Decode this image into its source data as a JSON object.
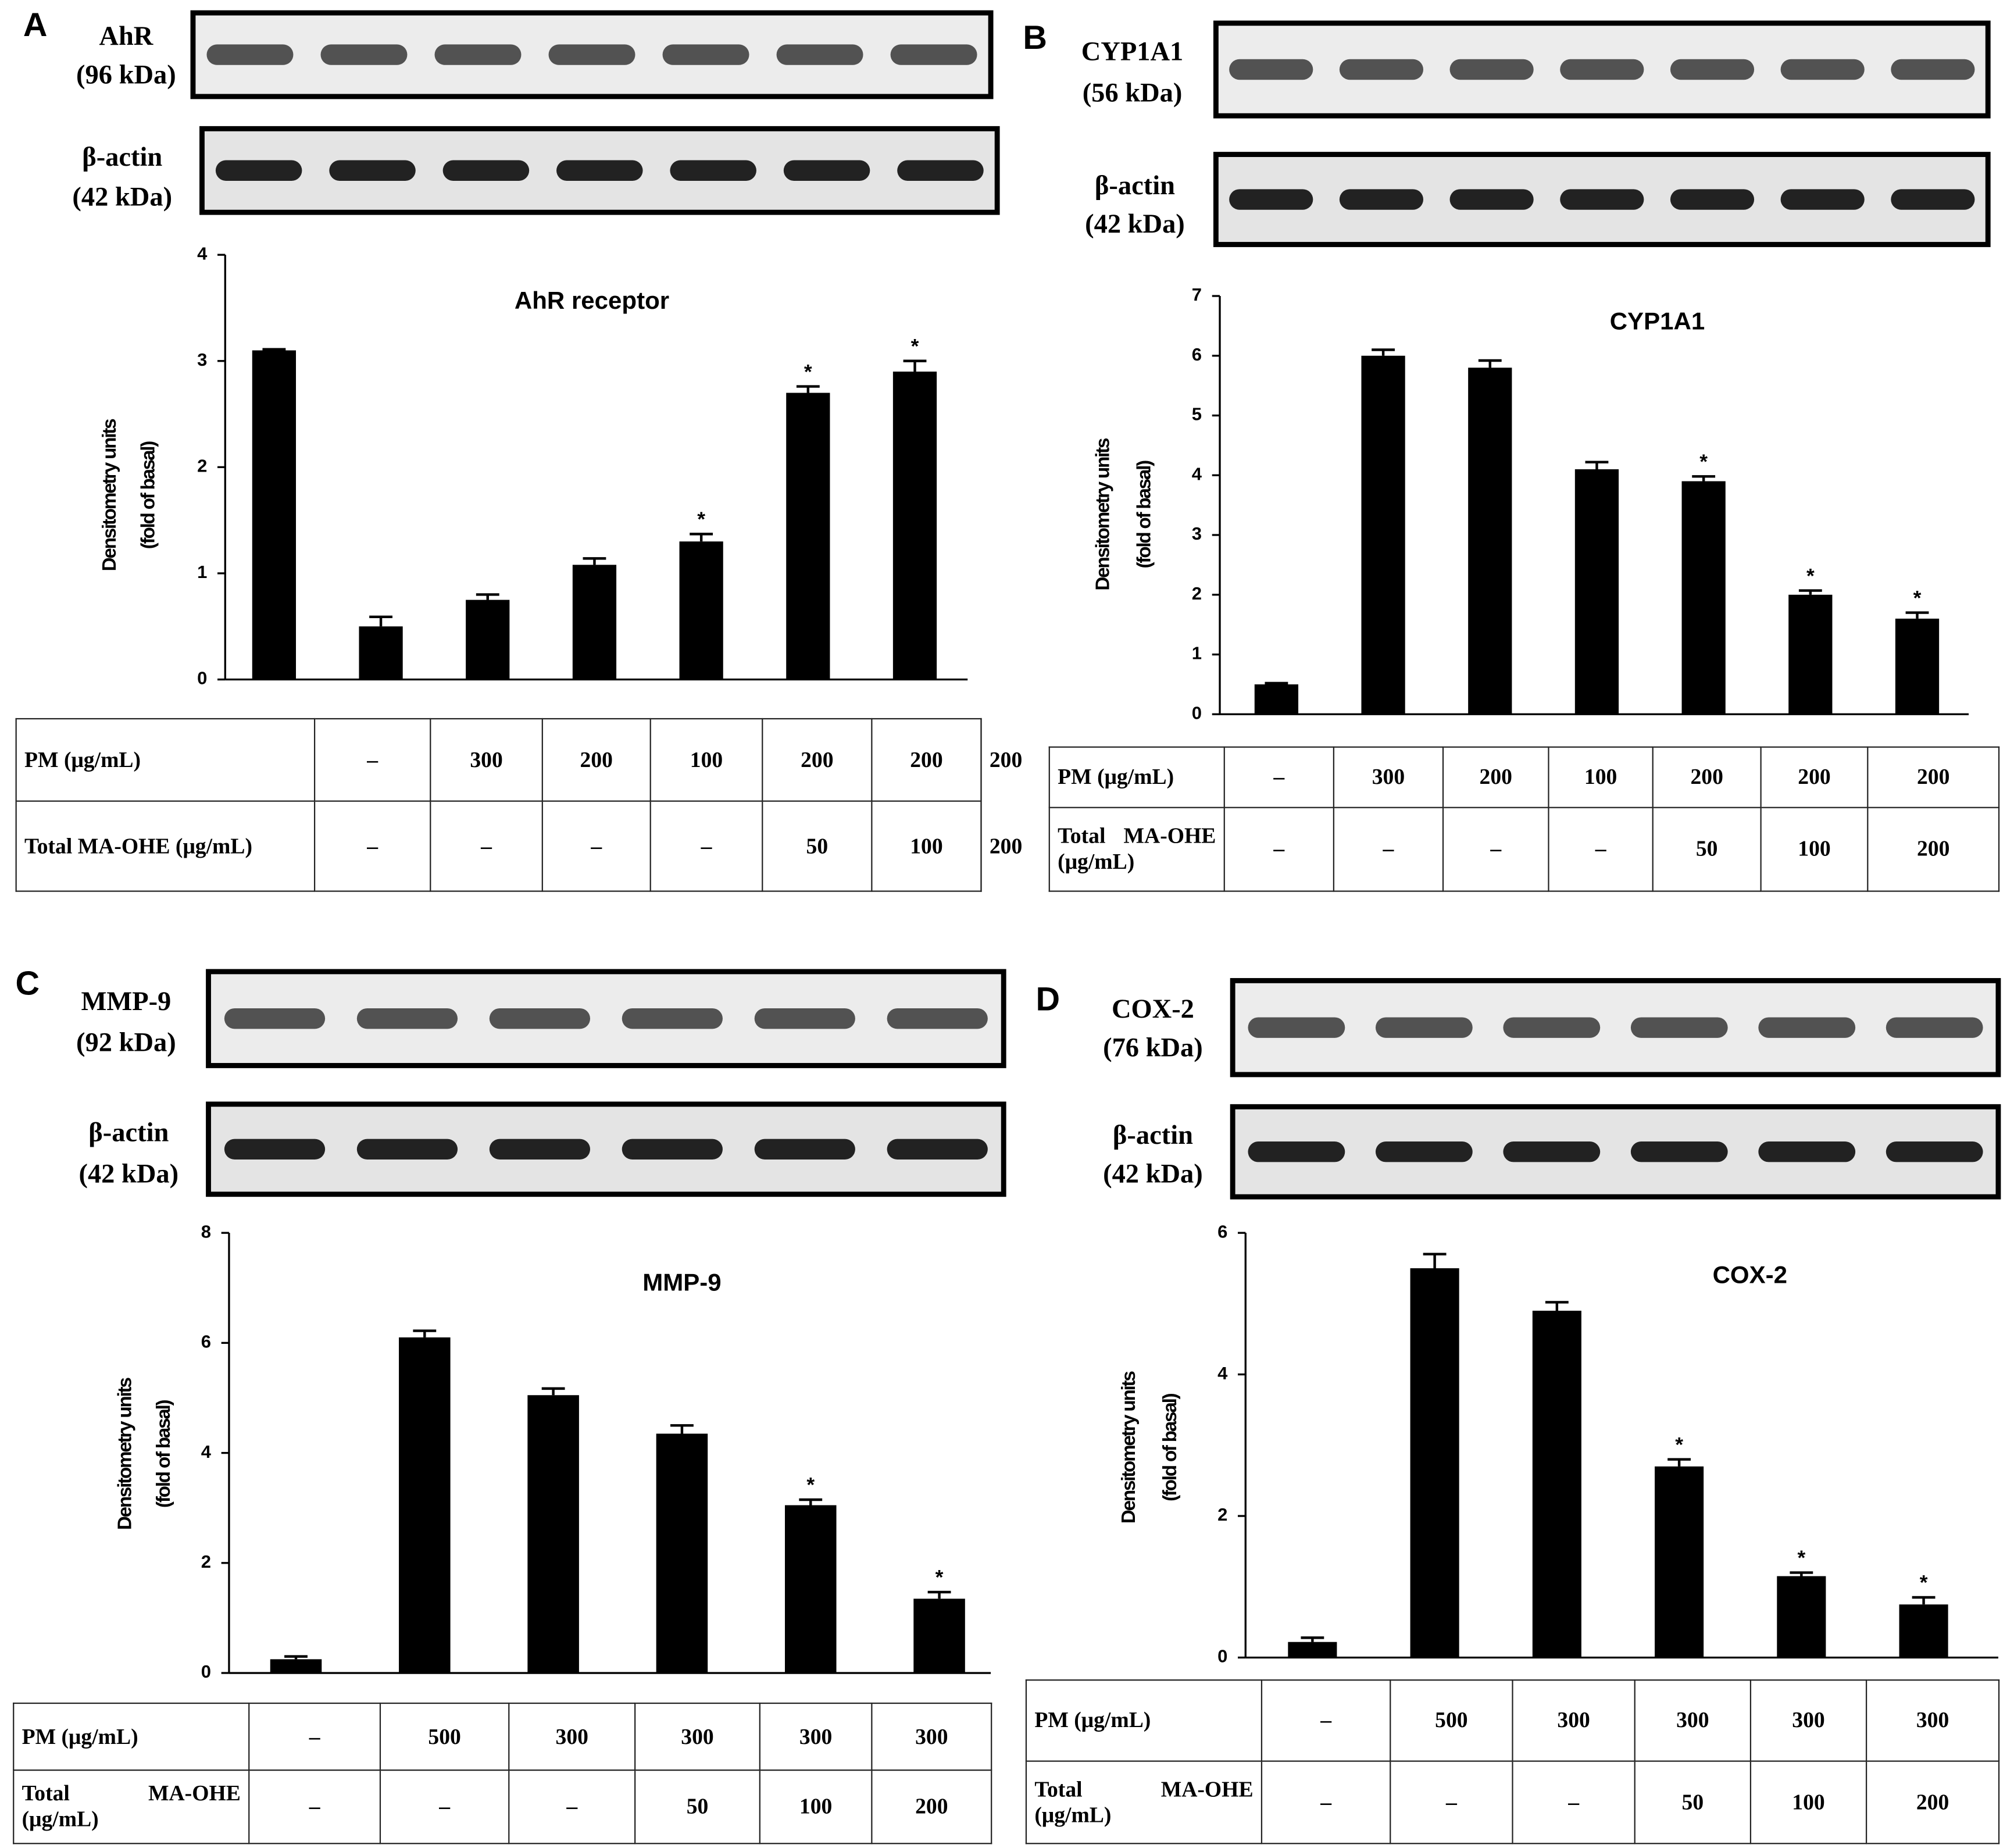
{
  "chart_data": [
    {
      "type": "bar",
      "panel": "A",
      "title": "AhR receptor",
      "ylabel": [
        "Densitometry units",
        "(fold of basal)"
      ],
      "values": [
        3.1,
        0.5,
        0.75,
        1.08,
        1.3,
        2.7,
        2.9
      ],
      "errors": [
        0.01,
        0.09,
        0.05,
        0.06,
        0.07,
        0.06,
        0.1
      ],
      "significance": [
        null,
        null,
        null,
        null,
        "*",
        "*",
        "*"
      ],
      "color": "#000000",
      "ylim": [
        0,
        4
      ],
      "yticks": [
        0,
        1,
        2,
        3,
        4
      ],
      "blots": [
        {
          "protein": "AhR",
          "size": "(96 kDa)"
        },
        {
          "protein": "β-actin",
          "size": "(42 kDa)"
        }
      ],
      "table": [
        [
          "PM (μg/mL)",
          "–",
          "300",
          "200",
          "100",
          "200",
          "200",
          "200"
        ],
        [
          "Total MA-OHE (μg/mL)",
          "–",
          "–",
          "–",
          "–",
          "50",
          "100",
          "200"
        ]
      ]
    },
    {
      "type": "bar",
      "panel": "B",
      "title": "CYP1A1",
      "ylabel": [
        "Densitometry units",
        "(fold of basal)"
      ],
      "values": [
        0.5,
        6.0,
        5.8,
        4.1,
        3.9,
        2.0,
        1.6
      ],
      "errors": [
        0.02,
        0.1,
        0.12,
        0.12,
        0.08,
        0.07,
        0.1
      ],
      "significance": [
        null,
        null,
        null,
        null,
        "*",
        "*",
        "*"
      ],
      "color": "#000000",
      "ylim": [
        0,
        7
      ],
      "yticks": [
        0,
        1,
        2,
        3,
        4,
        5,
        6,
        7
      ],
      "blots": [
        {
          "protein": "CYP1A1",
          "size": "(56 kDa)"
        },
        {
          "protein": "β-actin",
          "size": "(42 kDa)"
        }
      ],
      "table": [
        [
          "PM (μg/mL)",
          "–",
          "300",
          "200",
          "100",
          "200",
          "200",
          "200"
        ],
        [
          "Total MA-OHE (μg/mL)",
          "–",
          "–",
          "–",
          "–",
          "50",
          "100",
          "200"
        ]
      ]
    },
    {
      "type": "bar",
      "panel": "C",
      "title": "MMP-9",
      "ylabel": [
        "Densitometry units",
        "(fold of basal)"
      ],
      "values": [
        0.25,
        6.1,
        5.05,
        4.35,
        3.05,
        1.35
      ],
      "errors": [
        0.05,
        0.12,
        0.12,
        0.15,
        0.1,
        0.12
      ],
      "significance": [
        null,
        null,
        null,
        null,
        "*",
        "*"
      ],
      "color": "#000000",
      "ylim": [
        0,
        8
      ],
      "yticks": [
        0,
        2,
        4,
        6,
        8
      ],
      "blots": [
        {
          "protein": "MMP-9",
          "size": "(92 kDa)"
        },
        {
          "protein": "β-actin",
          "size": "(42 kDa)"
        }
      ],
      "table": [
        [
          "PM (μg/mL)",
          "–",
          "500",
          "300",
          "300",
          "300",
          "300"
        ],
        [
          "Total MA-OHE (μg/mL)",
          "–",
          "–",
          "–",
          "50",
          "100",
          "200"
        ]
      ]
    },
    {
      "type": "bar",
      "panel": "D",
      "title": "COX-2",
      "ylabel": [
        "Densitometry units",
        "(fold of basal)"
      ],
      "values": [
        0.22,
        5.5,
        4.9,
        2.7,
        1.15,
        0.75
      ],
      "errors": [
        0.06,
        0.2,
        0.12,
        0.1,
        0.05,
        0.1
      ],
      "significance": [
        null,
        null,
        null,
        "*",
        "*",
        "*"
      ],
      "color": "#000000",
      "ylim": [
        0,
        6
      ],
      "yticks": [
        0,
        2,
        4,
        6
      ],
      "blots": [
        {
          "protein": "COX-2",
          "size": "(76 kDa)"
        },
        {
          "protein": "β-actin",
          "size": "(42 kDa)"
        }
      ],
      "table": [
        [
          "PM (μg/mL)",
          "–",
          "500",
          "300",
          "300",
          "300",
          "300"
        ],
        [
          "Total MA-OHE (μg/mL)",
          "–",
          "–",
          "–",
          "50",
          "100",
          "200"
        ]
      ]
    }
  ]
}
